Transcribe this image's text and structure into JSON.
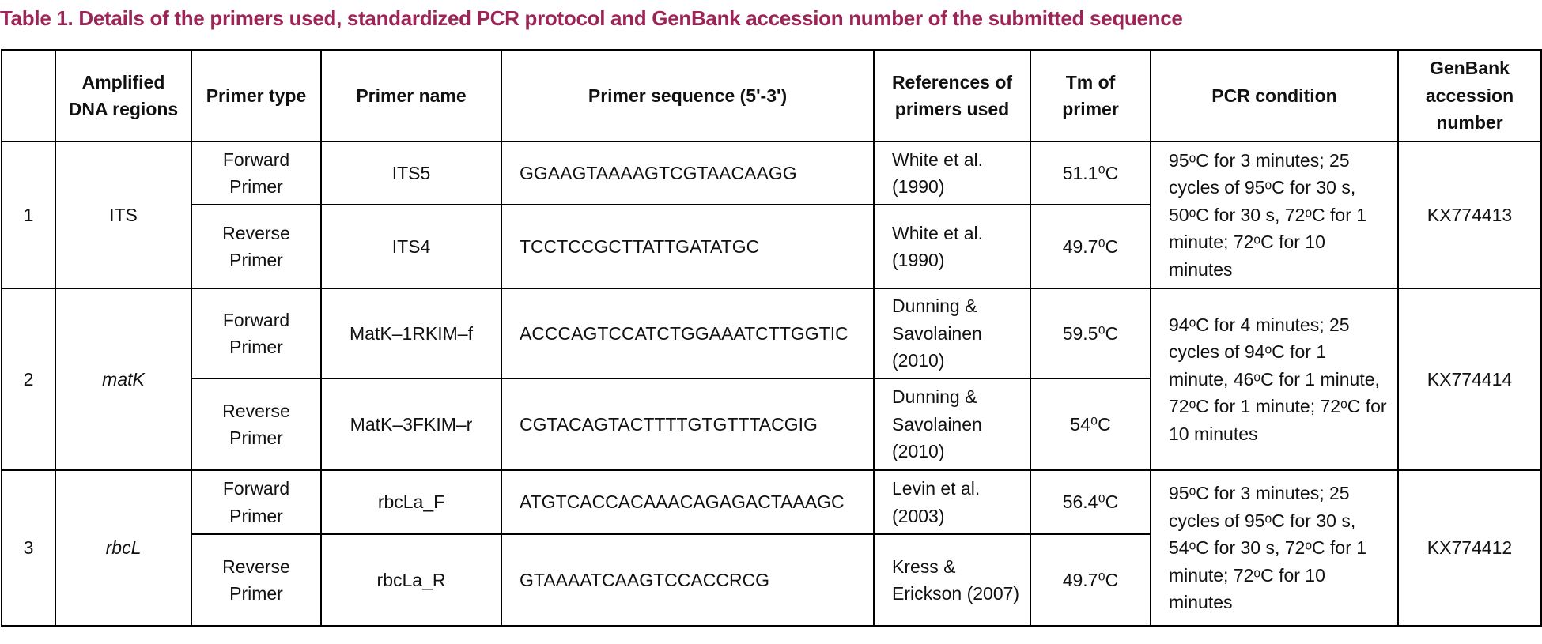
{
  "title": "Table 1. Details of the primers used, standardized PCR protocol and GenBank accession number of the submitted sequence",
  "table": {
    "header": [
      "Amplified DNA regions",
      "Primer type",
      "Primer name",
      "Primer sequence (5'-3')",
      "References of primers used",
      "Tm of primer",
      "PCR condition",
      "GenBank accession number"
    ],
    "groups": [
      {
        "number": "1",
        "region": "ITS",
        "italic": false,
        "pcr": "95ᵒC for 3 minutes; 25 cycles of 95ᵒC for 30 s, 50ᵒC for 30 s, 72ᵒC for 1 minute; 72ᵒC for 10 minutes",
        "accession": "KX774413",
        "primers": [
          {
            "type": "Forward Primer",
            "name": "ITS5",
            "sequence": "GGAAGTAAAAGTCGTAACAAGG",
            "reference": "White et al. (1990)",
            "tm": "51.1⁰C"
          },
          {
            "type": "Reverse Primer",
            "name": "ITS4",
            "sequence": "TCCTCCGCTTATTGATATGC",
            "reference": "White et al. (1990)",
            "tm": "49.7⁰C"
          }
        ]
      },
      {
        "number": "2",
        "region": "matK",
        "italic": true,
        "pcr": "94ᵒC for 4 minutes; 25 cycles of 94ᵒC for 1 minute, 46ᵒC for 1 minute, 72ᵒC for 1 minute; 72ᵒC for 10 minutes",
        "accession": "KX774414",
        "primers": [
          {
            "type": "Forward Primer",
            "name": "MatK–1RKIM–f",
            "sequence": "ACCCAGTCCATCTGGAAATCTTGGTIC",
            "reference": "Dunning & Savolainen (2010)",
            "tm": "59.5⁰C"
          },
          {
            "type": "Reverse Primer",
            "name": "MatK–3FKIM–r",
            "sequence": "CGTACAGTACTTTTGTGTTTACGIG",
            "reference": "Dunning & Savolainen (2010)",
            "tm": "54⁰C"
          }
        ]
      },
      {
        "number": "3",
        "region": "rbcL",
        "italic": true,
        "pcr": "95ᵒC for 3 minutes; 25 cycles of 95ᵒC for 30 s, 54ᵒC for 30 s, 72ᵒC for 1 minute; 72ᵒC for 10 minutes",
        "accession": "KX774412",
        "primers": [
          {
            "type": "Forward Primer",
            "name": "rbcLa_F",
            "sequence": "ATGTCACCACAAACAGAGACTAAAGC",
            "reference": "Levin et al. (2003)",
            "tm": "56.4⁰C"
          },
          {
            "type": "Reverse Primer",
            "name": "rbcLa_R",
            "sequence": "GTAAAATCAAGTCCACCRCG",
            "reference": "Kress & Erickson (2007)",
            "tm": "49.7⁰C"
          }
        ]
      }
    ]
  }
}
